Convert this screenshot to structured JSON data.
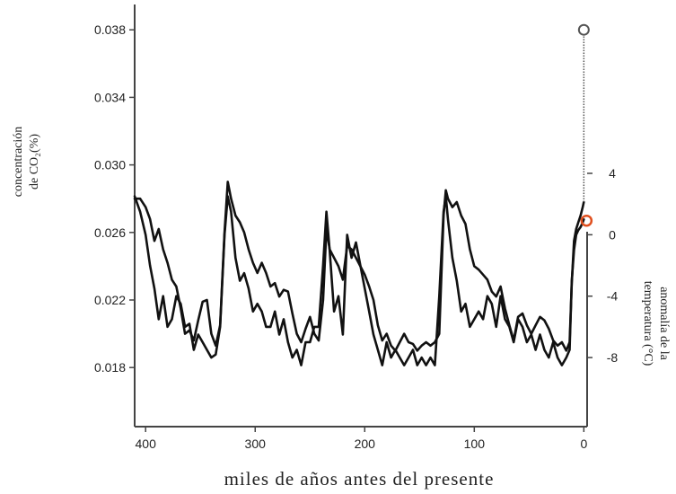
{
  "chart_data": {
    "type": "line",
    "xlabel": "miles de años antes del presente",
    "xlim": [
      410,
      -3
    ],
    "x_ticks": [
      400,
      300,
      200,
      100,
      0
    ],
    "co2_axis": {
      "label_line1": "concentración",
      "label_line2": "de CO₂(%)",
      "ylim": [
        0.0145,
        0.0395
      ],
      "ticks": [
        "0.038",
        "0.034",
        "0.030",
        "0.026",
        "0.022",
        "0.018"
      ]
    },
    "temp_axis": {
      "label_line1": "anomalía de la",
      "label_line2": "temperatura (°C)",
      "ylim": [
        -12.5,
        15
      ],
      "ticks": [
        "4",
        "0",
        "-4",
        "-8"
      ]
    },
    "colors": {
      "line": "#111111",
      "axis": "#444444",
      "co2_present_marker": "#555555",
      "temp_present_marker": "#e0501f"
    },
    "series": [
      {
        "axis": "co2",
        "x": [
          410,
          405,
          400,
          396,
          392,
          388,
          384,
          380,
          376,
          372,
          368,
          364,
          360,
          356,
          352,
          348,
          344,
          340,
          336,
          332,
          328,
          325,
          322,
          318,
          314,
          310,
          306,
          302,
          298,
          294,
          290,
          286,
          282,
          278,
          274,
          270,
          266,
          262,
          258,
          254,
          250,
          246,
          242,
          238,
          235,
          232,
          228,
          224,
          220,
          216,
          212,
          208,
          204,
          200,
          196,
          192,
          188,
          184,
          180,
          176,
          172,
          168,
          164,
          160,
          156,
          152,
          148,
          144,
          140,
          136,
          132,
          128,
          126,
          124,
          120,
          116,
          112,
          108,
          104,
          100,
          96,
          92,
          88,
          84,
          80,
          76,
          72,
          68,
          64,
          60,
          56,
          52,
          48,
          44,
          40,
          36,
          32,
          28,
          24,
          20,
          16,
          13,
          11,
          9,
          7,
          5,
          3,
          1,
          0
        ],
        "values": [
          0.028,
          0.028,
          0.0275,
          0.0268,
          0.0255,
          0.0262,
          0.025,
          0.0242,
          0.0232,
          0.0228,
          0.0215,
          0.02,
          0.0202,
          0.0196,
          0.0208,
          0.0219,
          0.022,
          0.02,
          0.0193,
          0.0205,
          0.026,
          0.029,
          0.028,
          0.027,
          0.0266,
          0.026,
          0.025,
          0.0242,
          0.0236,
          0.0242,
          0.0236,
          0.0228,
          0.023,
          0.0222,
          0.0226,
          0.0225,
          0.0212,
          0.02,
          0.0195,
          0.0203,
          0.021,
          0.02,
          0.0196,
          0.022,
          0.0262,
          0.025,
          0.0245,
          0.024,
          0.0232,
          0.0252,
          0.025,
          0.0245,
          0.024,
          0.0235,
          0.0228,
          0.022,
          0.0205,
          0.0196,
          0.02,
          0.0193,
          0.019,
          0.0195,
          0.02,
          0.0195,
          0.0194,
          0.019,
          0.0193,
          0.0195,
          0.0193,
          0.0195,
          0.02,
          0.027,
          0.0285,
          0.028,
          0.0275,
          0.0278,
          0.027,
          0.0265,
          0.025,
          0.024,
          0.0238,
          0.0235,
          0.0232,
          0.0225,
          0.0222,
          0.0228,
          0.0215,
          0.0205,
          0.0196,
          0.021,
          0.0212,
          0.0205,
          0.02,
          0.0205,
          0.021,
          0.0208,
          0.0203,
          0.0196,
          0.0193,
          0.0195,
          0.019,
          0.0195,
          0.023,
          0.0255,
          0.0262,
          0.0266,
          0.027,
          0.0275,
          0.0278
        ]
      },
      {
        "axis": "temp",
        "x": [
          410,
          405,
          400,
          396,
          392,
          388,
          384,
          380,
          376,
          372,
          368,
          364,
          360,
          356,
          352,
          348,
          344,
          340,
          336,
          332,
          328,
          325,
          322,
          318,
          314,
          310,
          306,
          302,
          298,
          294,
          290,
          286,
          282,
          278,
          274,
          270,
          266,
          262,
          258,
          254,
          250,
          246,
          242,
          238,
          235,
          232,
          228,
          224,
          220,
          216,
          212,
          208,
          204,
          200,
          196,
          192,
          188,
          184,
          180,
          176,
          172,
          168,
          164,
          160,
          156,
          152,
          148,
          144,
          140,
          136,
          132,
          128,
          126,
          124,
          120,
          116,
          112,
          108,
          104,
          100,
          96,
          92,
          88,
          84,
          80,
          76,
          72,
          68,
          64,
          60,
          56,
          52,
          48,
          44,
          40,
          36,
          32,
          28,
          24,
          20,
          16,
          13,
          11,
          9,
          7,
          5,
          3,
          1,
          0
        ],
        "values": [
          2.5,
          1.5,
          0.0,
          -2.0,
          -3.5,
          -5.5,
          -4.0,
          -6.0,
          -5.5,
          -4.0,
          -4.5,
          -6.0,
          -5.8,
          -7.5,
          -6.5,
          -7.0,
          -7.5,
          -8.0,
          -7.8,
          -6.0,
          0.0,
          2.5,
          1.5,
          -1.5,
          -3.0,
          -2.5,
          -3.5,
          -5.0,
          -4.5,
          -5.0,
          -6.0,
          -6.0,
          -5.0,
          -6.5,
          -5.5,
          -7.0,
          -8.0,
          -7.5,
          -8.5,
          -7.0,
          -7.0,
          -6.0,
          -6.0,
          -2.0,
          1.5,
          -1.0,
          -5.0,
          -4.0,
          -6.5,
          0.0,
          -1.5,
          -0.5,
          -2.0,
          -3.5,
          -5.0,
          -6.5,
          -7.5,
          -8.5,
          -7.0,
          -8.0,
          -7.5,
          -8.0,
          -8.5,
          -8.0,
          -7.5,
          -8.5,
          -8.0,
          -8.5,
          -8.0,
          -8.5,
          -4.0,
          1.5,
          2.5,
          1.0,
          -1.5,
          -3.0,
          -5.0,
          -4.5,
          -6.0,
          -5.5,
          -5.0,
          -5.5,
          -4.0,
          -4.5,
          -6.0,
          -4.0,
          -5.5,
          -6.0,
          -7.0,
          -5.5,
          -6.0,
          -7.0,
          -6.5,
          -7.5,
          -6.5,
          -7.5,
          -8.0,
          -7.0,
          -8.0,
          -8.5,
          -8.0,
          -7.5,
          -3.0,
          -1.0,
          0.0,
          0.3,
          0.5,
          0.8,
          1.0
        ]
      }
    ],
    "present_markers": [
      {
        "axis": "co2",
        "x": 0,
        "value": 0.038
      },
      {
        "axis": "temp",
        "x": 0,
        "value": 0.8
      }
    ]
  }
}
